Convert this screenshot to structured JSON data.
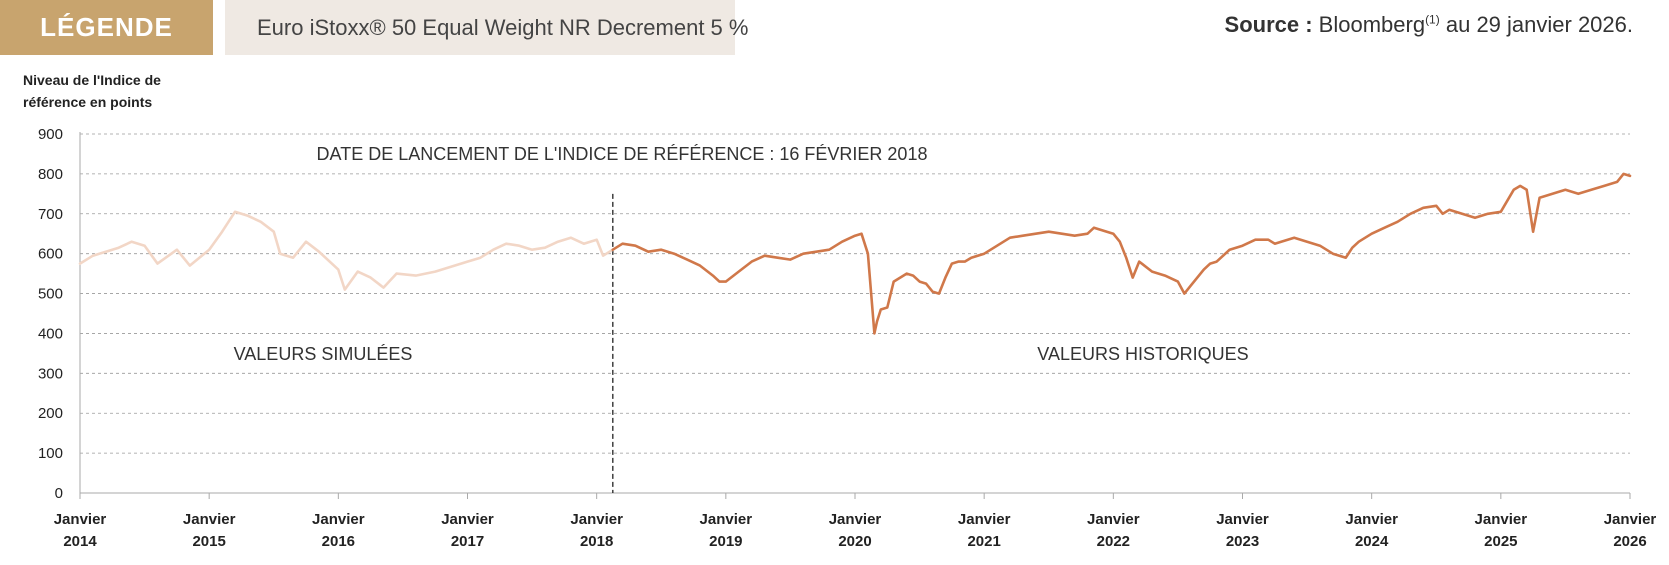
{
  "legend": {
    "tag": "LÉGENDE",
    "series_label": "Euro iStoxx® 50 Equal Weight NR Decrement 5 %"
  },
  "source": {
    "label": "Source :",
    "provider": "Bloomberg",
    "footnote": "(1)",
    "date_text": "au 29 janvier 2026."
  },
  "colors": {
    "historical": "#d0784a",
    "simulated": "#f2d6c6",
    "legend_tag": "#c8a46e",
    "legend_bg": "#efe9e3",
    "grid": "#9a9a9a"
  },
  "chart_data": {
    "type": "line",
    "ylabel": [
      "Niveau de l'Indice de",
      "référence en points"
    ],
    "ylim": [
      0,
      900
    ],
    "yticks": [
      0,
      100,
      200,
      300,
      400,
      500,
      600,
      700,
      800,
      900
    ],
    "xlim": [
      2014.0,
      2026.0
    ],
    "xtick_labels": [
      [
        "Janvier",
        "2014"
      ],
      [
        "Janvier",
        "2015"
      ],
      [
        "Janvier",
        "2016"
      ],
      [
        "Janvier",
        "2017"
      ],
      [
        "Janvier",
        "2018"
      ],
      [
        "Janvier",
        "2019"
      ],
      [
        "Janvier",
        "2020"
      ],
      [
        "Janvier",
        "2021"
      ],
      [
        "Janvier",
        "2022"
      ],
      [
        "Janvier",
        "2023"
      ],
      [
        "Janvier",
        "2024"
      ],
      [
        "Janvier",
        "2025"
      ],
      [
        "Janvier",
        "2026"
      ]
    ],
    "grid": true,
    "launch_date": 2018.125,
    "annotations": {
      "launch": "DATE DE LANCEMENT DE L'INDICE DE RÉFÉRENCE : 16 FÉVRIER 2018",
      "simulated": "VALEURS SIMULÉES",
      "historical": "VALEURS HISTORIQUES"
    },
    "series": [
      {
        "name": "Euro iStoxx® 50 Equal Weight NR Decrement 5 %",
        "segment": "simulated",
        "x": [
          2014.0,
          2014.1,
          2014.2,
          2014.3,
          2014.4,
          2014.5,
          2014.6,
          2014.75,
          2014.85,
          2015.0,
          2015.1,
          2015.2,
          2015.3,
          2015.4,
          2015.5,
          2015.55,
          2015.65,
          2015.75,
          2015.85,
          2016.0,
          2016.05,
          2016.15,
          2016.25,
          2016.35,
          2016.45,
          2016.6,
          2016.75,
          2016.9,
          2017.0,
          2017.1,
          2017.2,
          2017.3,
          2017.4,
          2017.5,
          2017.6,
          2017.7,
          2017.8,
          2017.9,
          2018.0,
          2018.05,
          2018.125
        ],
        "y": [
          575,
          595,
          605,
          615,
          630,
          620,
          575,
          610,
          570,
          610,
          655,
          705,
          695,
          680,
          655,
          600,
          590,
          630,
          605,
          560,
          510,
          555,
          540,
          515,
          550,
          545,
          555,
          570,
          580,
          590,
          610,
          625,
          620,
          610,
          615,
          630,
          640,
          625,
          635,
          595,
          610
        ]
      },
      {
        "name": "Euro iStoxx® 50 Equal Weight NR Decrement 5 %",
        "segment": "historical",
        "x": [
          2018.125,
          2018.2,
          2018.3,
          2018.4,
          2018.5,
          2018.6,
          2018.7,
          2018.8,
          2018.9,
          2018.95,
          2019.0,
          2019.1,
          2019.2,
          2019.3,
          2019.4,
          2019.5,
          2019.6,
          2019.7,
          2019.8,
          2019.9,
          2020.0,
          2020.05,
          2020.1,
          2020.13,
          2020.15,
          2020.17,
          2020.2,
          2020.25,
          2020.3,
          2020.35,
          2020.4,
          2020.45,
          2020.5,
          2020.55,
          2020.6,
          2020.65,
          2020.7,
          2020.75,
          2020.8,
          2020.85,
          2020.9,
          2021.0,
          2021.1,
          2021.2,
          2021.3,
          2021.4,
          2021.5,
          2021.6,
          2021.7,
          2021.8,
          2021.85,
          2021.9,
          2022.0,
          2022.05,
          2022.1,
          2022.15,
          2022.2,
          2022.3,
          2022.4,
          2022.5,
          2022.55,
          2022.6,
          2022.7,
          2022.75,
          2022.8,
          2022.9,
          2023.0,
          2023.1,
          2023.2,
          2023.25,
          2023.3,
          2023.4,
          2023.5,
          2023.6,
          2023.7,
          2023.8,
          2023.85,
          2023.9,
          2024.0,
          2024.1,
          2024.2,
          2024.3,
          2024.4,
          2024.5,
          2024.55,
          2024.6,
          2024.7,
          2024.8,
          2024.9,
          2025.0,
          2025.1,
          2025.15,
          2025.2,
          2025.25,
          2025.3,
          2025.4,
          2025.5,
          2025.6,
          2025.7,
          2025.8,
          2025.9,
          2025.95,
          2026.0
        ],
        "y": [
          610,
          625,
          620,
          605,
          610,
          600,
          585,
          570,
          545,
          530,
          530,
          555,
          580,
          595,
          590,
          585,
          600,
          605,
          610,
          630,
          645,
          650,
          600,
          480,
          400,
          430,
          460,
          465,
          530,
          540,
          550,
          545,
          530,
          525,
          505,
          500,
          540,
          575,
          580,
          580,
          590,
          600,
          620,
          640,
          645,
          650,
          655,
          650,
          645,
          650,
          665,
          660,
          650,
          630,
          590,
          540,
          580,
          555,
          545,
          530,
          500,
          520,
          560,
          575,
          580,
          610,
          620,
          635,
          635,
          625,
          630,
          640,
          630,
          620,
          600,
          590,
          615,
          630,
          650,
          665,
          680,
          700,
          715,
          720,
          700,
          710,
          700,
          690,
          700,
          705,
          760,
          770,
          760,
          655,
          740,
          750,
          760,
          750,
          760,
          770,
          780,
          800,
          795
        ]
      }
    ]
  }
}
